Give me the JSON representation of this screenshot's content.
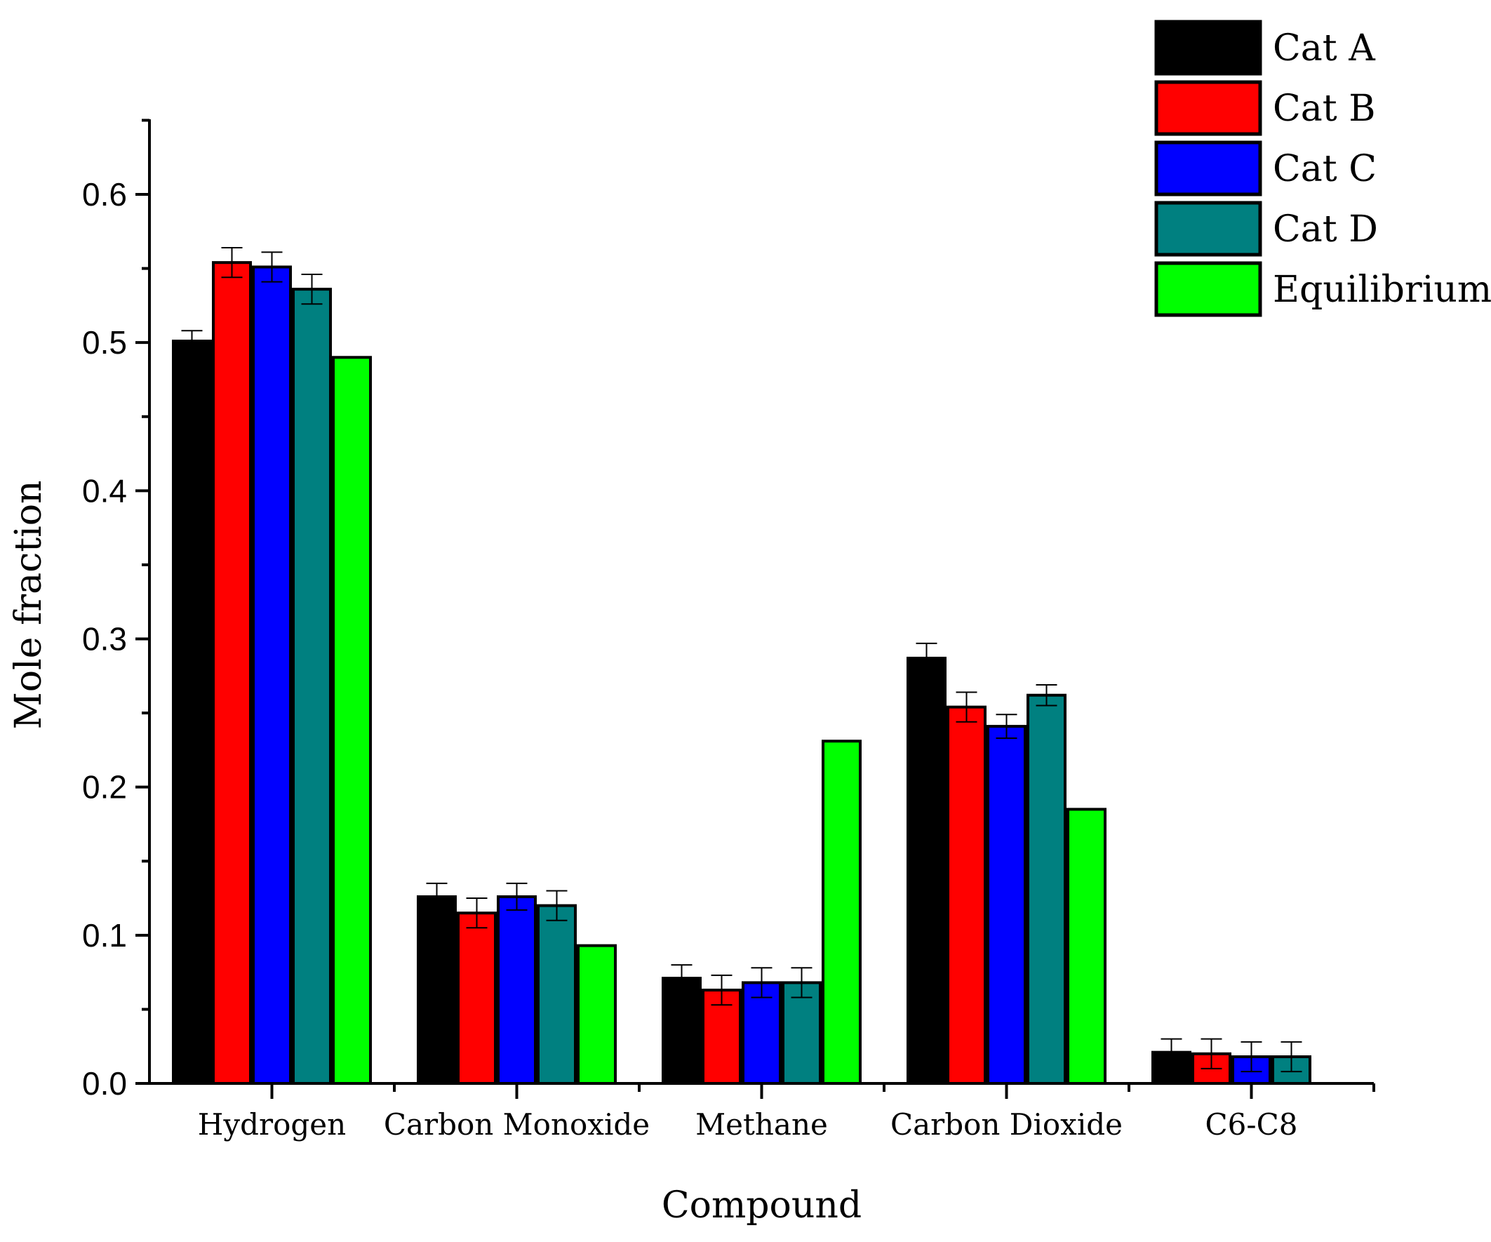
{
  "chart_data": {
    "type": "bar",
    "title": "",
    "xlabel": "Compound",
    "ylabel": "Mole fraction",
    "ylim": [
      0,
      0.65
    ],
    "yticks": [
      "0.0",
      "0.1",
      "0.2",
      "0.3",
      "0.4",
      "0.5",
      "0.6"
    ],
    "categories": [
      "Hydrogen",
      "Carbon Monoxide",
      "Methane",
      "Carbon Dioxide",
      "C6-C8"
    ],
    "grid": false,
    "legend_position": "top-right",
    "series": [
      {
        "name": "Cat A",
        "color": "#000000",
        "values": [
          0.501,
          0.126,
          0.071,
          0.287,
          0.021
        ],
        "errors": [
          0.007,
          0.009,
          0.009,
          0.01,
          0.009
        ]
      },
      {
        "name": "Cat B",
        "color": "#ff0000",
        "values": [
          0.554,
          0.115,
          0.063,
          0.254,
          0.02
        ],
        "errors": [
          0.01,
          0.01,
          0.01,
          0.01,
          0.01
        ]
      },
      {
        "name": "Cat C",
        "color": "#0000ff",
        "values": [
          0.551,
          0.126,
          0.068,
          0.241,
          0.018
        ],
        "errors": [
          0.01,
          0.009,
          0.01,
          0.008,
          0.01
        ]
      },
      {
        "name": "Cat D",
        "color": "#008080",
        "values": [
          0.536,
          0.12,
          0.068,
          0.262,
          0.018
        ],
        "errors": [
          0.01,
          0.01,
          0.01,
          0.007,
          0.01
        ]
      },
      {
        "name": "Equilibrium",
        "color": "#00ff00",
        "values": [
          0.49,
          0.093,
          0.231,
          0.185,
          null
        ],
        "errors": [
          null,
          null,
          null,
          null,
          null
        ]
      }
    ]
  }
}
